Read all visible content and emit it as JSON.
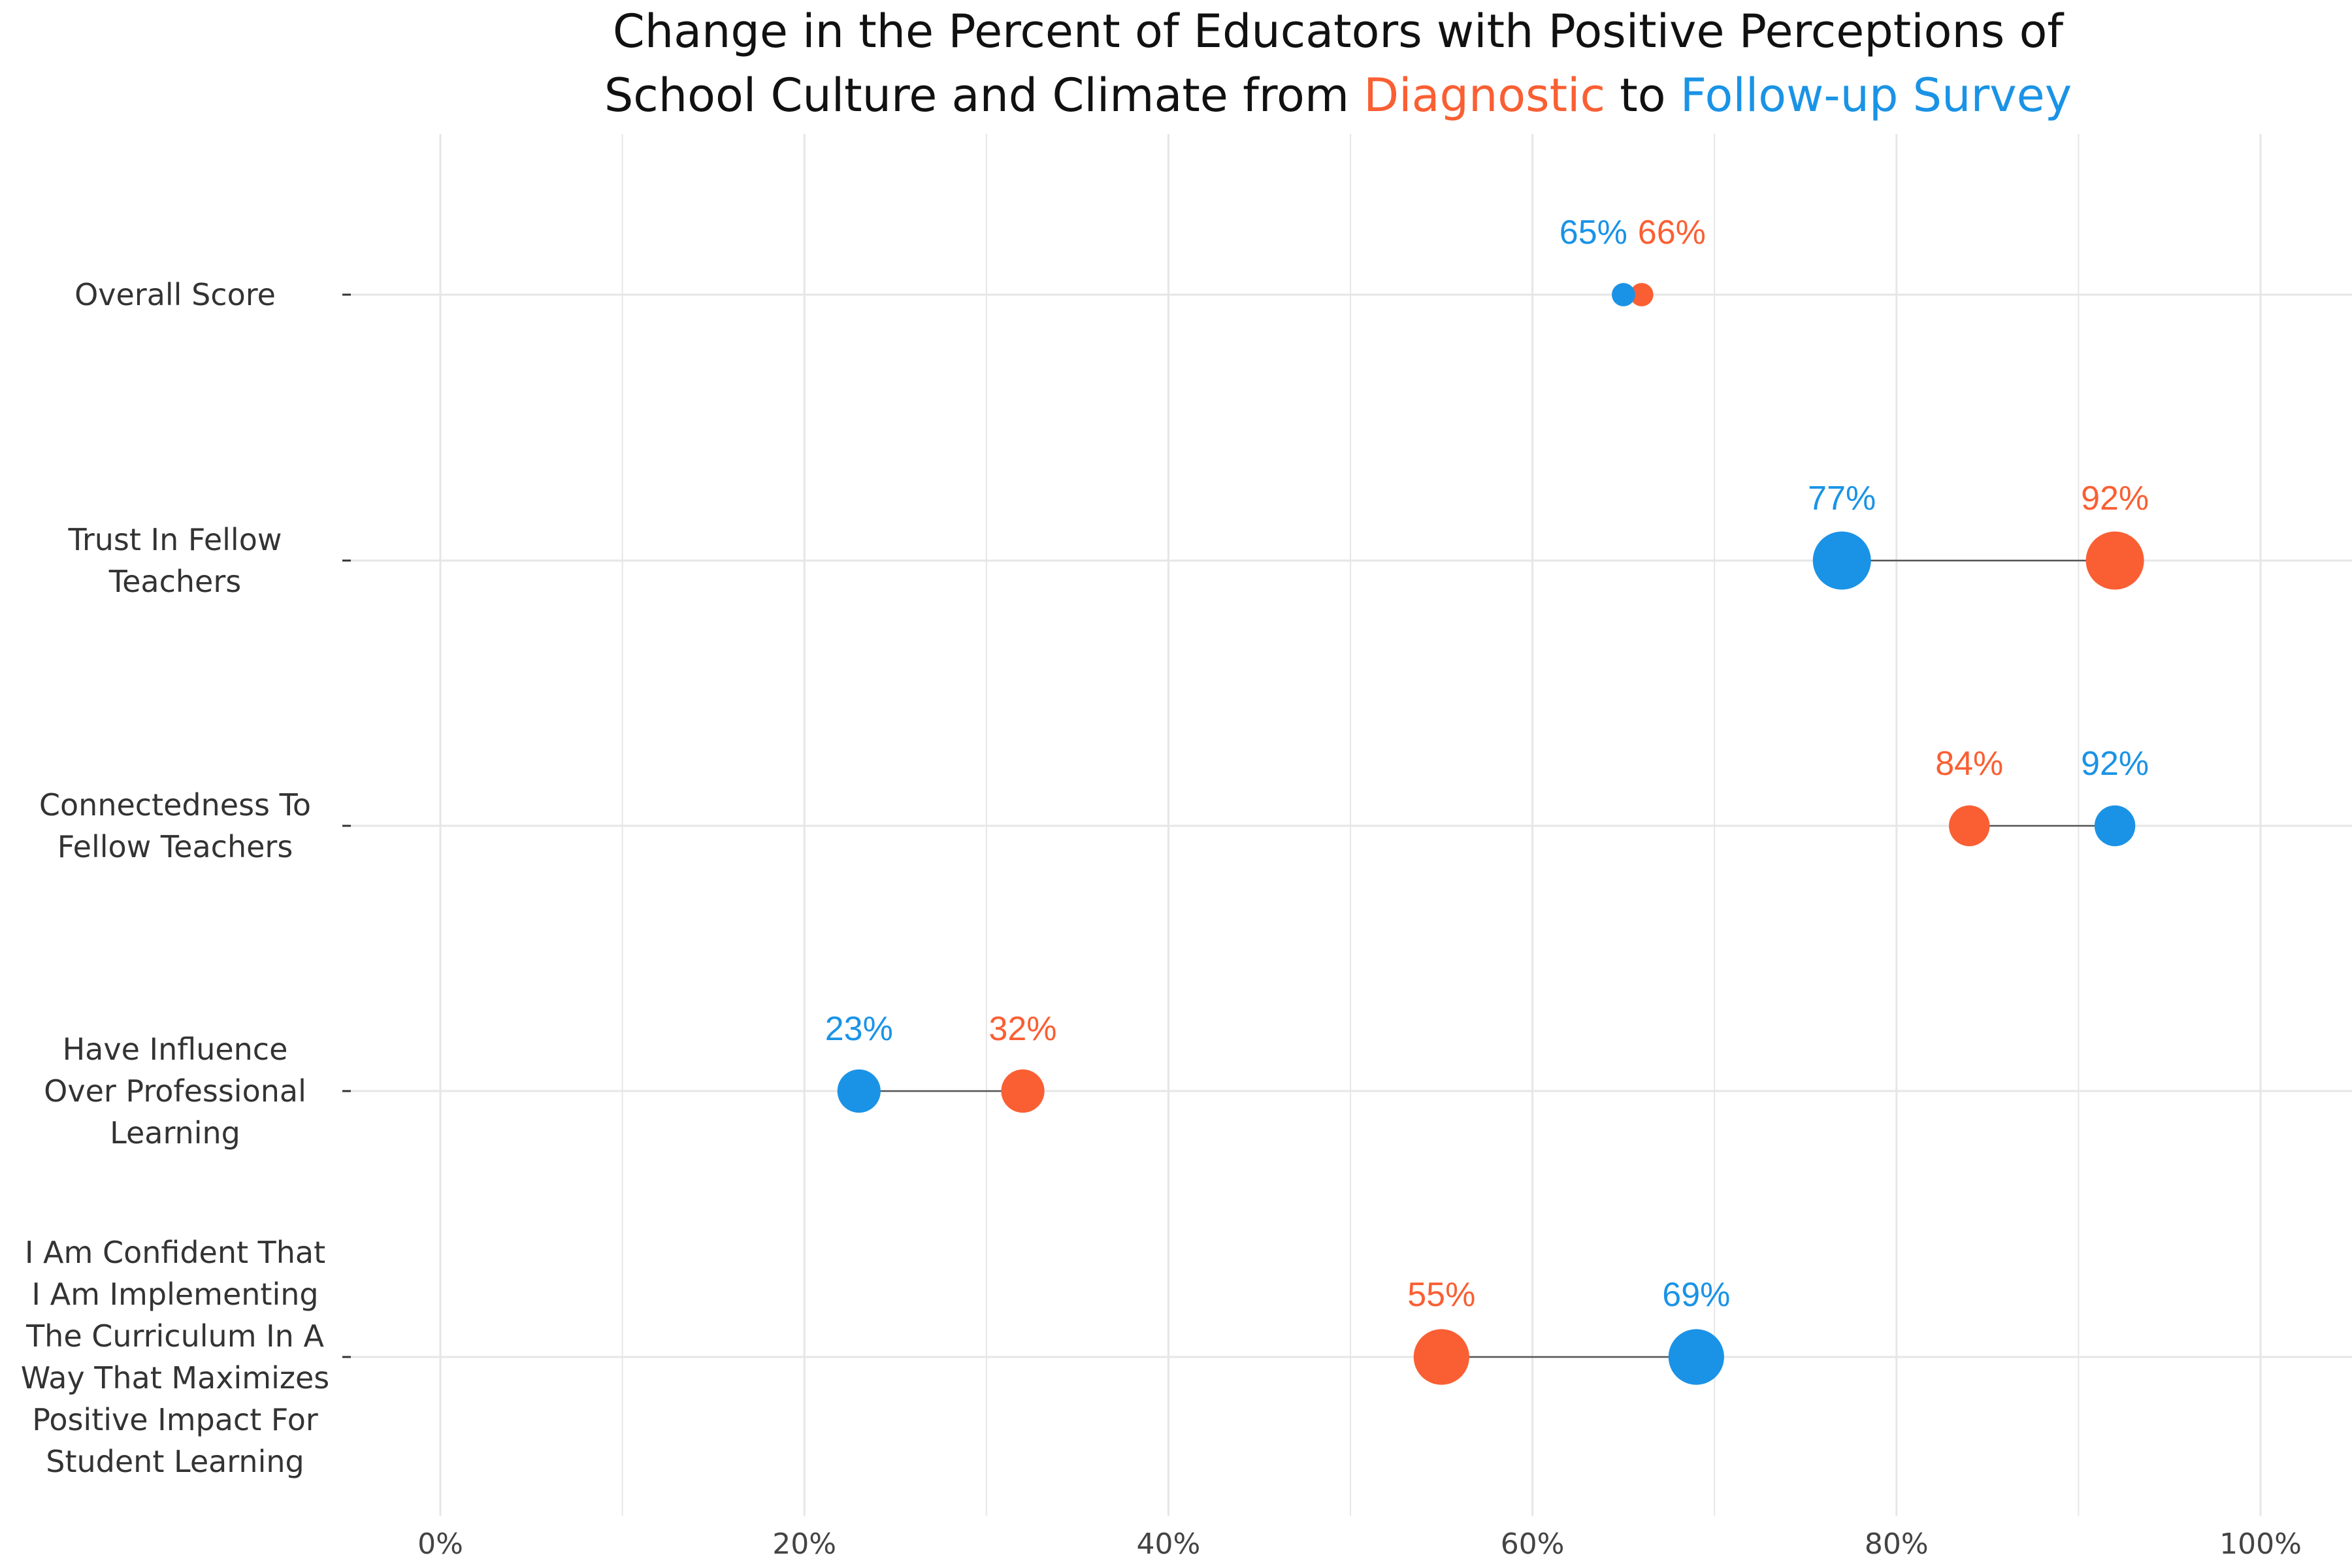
{
  "chart_data": {
    "type": "dumbbell",
    "title": {
      "line1": "Change in the Percent of Educators with Positive Perceptions of",
      "line2_prefix": "School Culture and Climate from ",
      "series1_word": "Diagnostic",
      "connector": " to ",
      "series2_word": "Follow-up Survey"
    },
    "x_axis": {
      "range": [
        -0.05,
        1.05
      ],
      "ticks": [
        0,
        0.2,
        0.4,
        0.6,
        0.8,
        1.0
      ],
      "tick_labels": [
        "0%",
        "20%",
        "40%",
        "60%",
        "80%",
        "100%"
      ],
      "minor_gridlines": [
        0.1,
        0.3,
        0.5,
        0.7,
        0.9
      ]
    },
    "grid": true,
    "colors": {
      "diagnostic": "#fa5f33",
      "followup": "#1a93e6",
      "arrow": "#555555",
      "grid": "#e6e6e6"
    },
    "categories": [
      {
        "label_lines": [
          "Overall Score"
        ],
        "diagnostic": 0.66,
        "followup": 0.65,
        "diagnostic_label": "66%",
        "followup_label": "65%"
      },
      {
        "label_lines": [
          "Trust In Fellow",
          "Teachers"
        ],
        "diagnostic": 0.92,
        "followup": 0.77,
        "diagnostic_label": "92%",
        "followup_label": "77%"
      },
      {
        "label_lines": [
          "Connectedness To",
          "Fellow Teachers"
        ],
        "diagnostic": 0.84,
        "followup": 0.92,
        "diagnostic_label": "84%",
        "followup_label": "92%"
      },
      {
        "label_lines": [
          "Have Influence",
          "Over Professional",
          "Learning"
        ],
        "diagnostic": 0.32,
        "followup": 0.23,
        "diagnostic_label": "32%",
        "followup_label": "23%"
      },
      {
        "label_lines": [
          "I Am Confident That",
          "I Am Implementing",
          "The Curriculum In A",
          "Way That Maximizes",
          "Positive Impact For",
          "Student Learning"
        ],
        "diagnostic": 0.55,
        "followup": 0.69,
        "diagnostic_label": "55%",
        "followup_label": "69%"
      }
    ]
  }
}
